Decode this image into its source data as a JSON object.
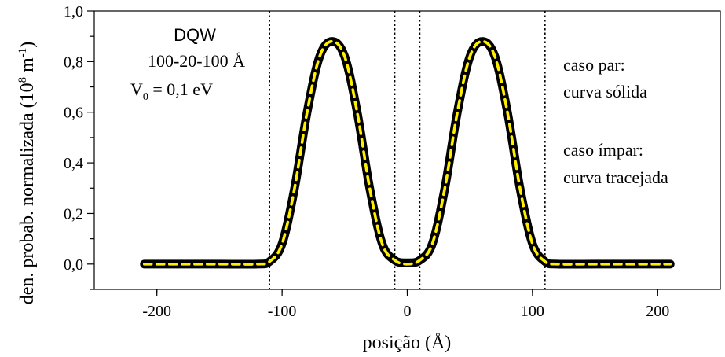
{
  "chart_data": {
    "type": "line",
    "title": "",
    "xlabel": "posição (Å)",
    "ylabel_prefix": "den. probab. normalizada (10",
    "ylabel_sup1": "8",
    "ylabel_mid": " m",
    "ylabel_sup2": "-1",
    "ylabel_suffix": ")",
    "xlim": [
      -250,
      250
    ],
    "ylim": [
      -0.1,
      1.0
    ],
    "x_ticks": [
      -200,
      -100,
      0,
      100,
      200
    ],
    "x_tick_labels": [
      "-200",
      "-100",
      "0",
      "100",
      "200"
    ],
    "y_ticks": [
      0.0,
      0.2,
      0.4,
      0.6,
      0.8,
      1.0
    ],
    "y_tick_labels": [
      "0,0",
      "0,2",
      "0,4",
      "0,6",
      "0,8",
      "1,0"
    ],
    "grid": false,
    "vertical_dotted_lines_x": [
      -110,
      -10,
      10,
      110
    ],
    "series": [
      {
        "name": "caso par",
        "style": "solid",
        "color": "#000000",
        "x": [
          -210,
          -150,
          -120,
          -110,
          -100,
          -90,
          -80,
          -70,
          -60,
          -50,
          -40,
          -30,
          -20,
          -10,
          0,
          10,
          20,
          30,
          40,
          50,
          60,
          70,
          80,
          90,
          100,
          110,
          120,
          150,
          210
        ],
        "y": [
          0.0,
          0.0,
          0.0,
          0.01,
          0.08,
          0.3,
          0.6,
          0.82,
          0.88,
          0.82,
          0.6,
          0.3,
          0.08,
          0.015,
          0.005,
          0.015,
          0.08,
          0.3,
          0.6,
          0.82,
          0.88,
          0.82,
          0.6,
          0.3,
          0.08,
          0.01,
          0.0,
          0.0,
          0.0
        ]
      },
      {
        "name": "caso ímpar",
        "style": "dashed",
        "color": "#ffee00",
        "x": [
          -210,
          -150,
          -120,
          -110,
          -100,
          -90,
          -80,
          -70,
          -60,
          -50,
          -40,
          -30,
          -20,
          -10,
          0,
          10,
          20,
          30,
          40,
          50,
          60,
          70,
          80,
          90,
          100,
          110,
          120,
          150,
          210
        ],
        "y": [
          0.0,
          0.0,
          0.0,
          0.01,
          0.08,
          0.3,
          0.6,
          0.82,
          0.88,
          0.82,
          0.6,
          0.3,
          0.08,
          0.015,
          0.0,
          0.015,
          0.08,
          0.3,
          0.6,
          0.82,
          0.88,
          0.82,
          0.6,
          0.3,
          0.08,
          0.01,
          0.0,
          0.0,
          0.0
        ]
      }
    ],
    "annotations": {
      "left_title": "DQW",
      "left_line2": "100-20-100 Å",
      "left_v_main": "V",
      "left_v_sub": "0",
      "left_v_rest": " = 0,1 eV",
      "right_line1": "caso par:",
      "right_line2": "curva sólida",
      "right_line3": "caso ímpar:",
      "right_line4": "curva tracejada"
    }
  }
}
